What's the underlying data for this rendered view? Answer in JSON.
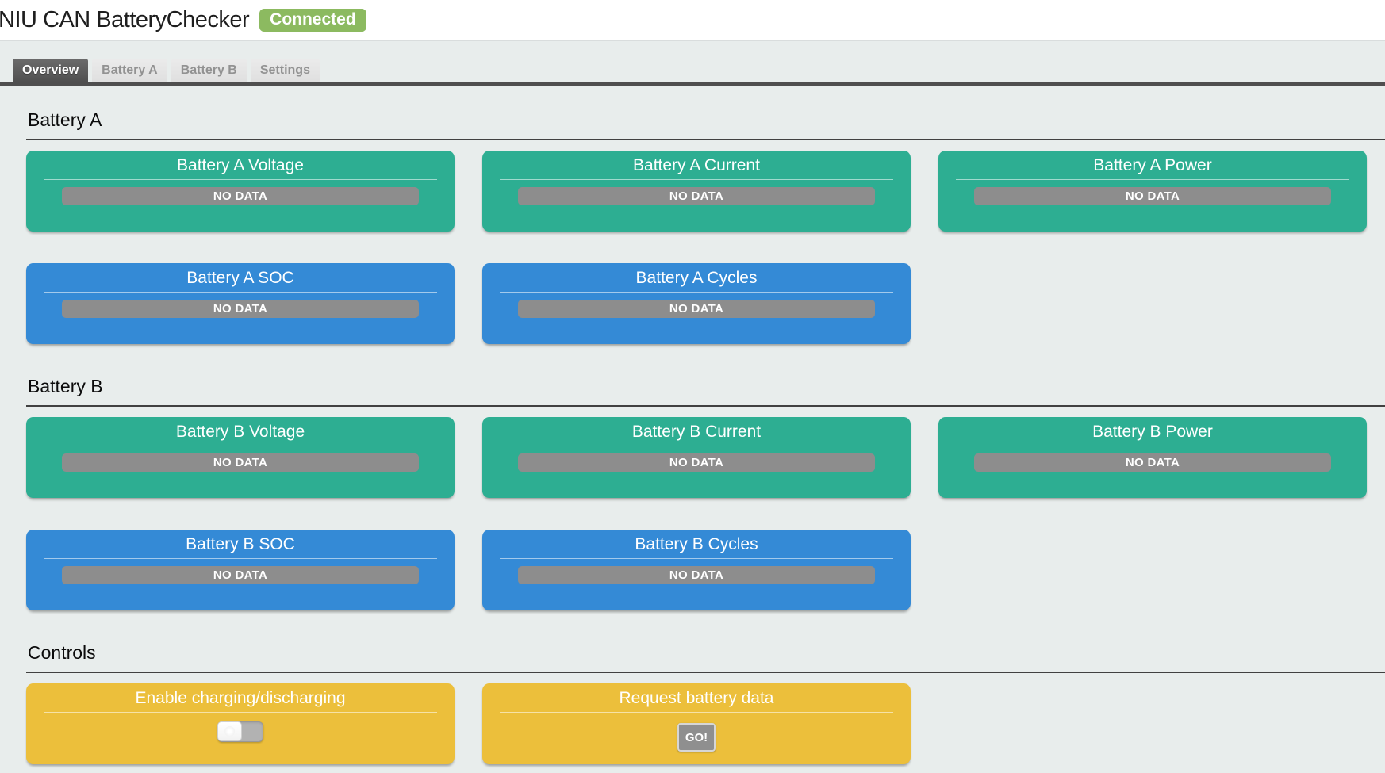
{
  "header": {
    "title": "NIU CAN BatteryChecker",
    "status_badge": "Connected"
  },
  "tabs": {
    "active": "Overview",
    "items": [
      {
        "label": "Overview"
      },
      {
        "label": "Battery A"
      },
      {
        "label": "Battery B"
      },
      {
        "label": "Settings"
      }
    ]
  },
  "battery_a": {
    "heading": "Battery A",
    "cards": [
      {
        "title": "Battery A Voltage",
        "value": "NO DATA",
        "color": "green"
      },
      {
        "title": "Battery A Current",
        "value": "NO DATA",
        "color": "green"
      },
      {
        "title": "Battery A Power",
        "value": "NO DATA",
        "color": "green"
      },
      {
        "title": "Battery A SOC",
        "value": "NO DATA",
        "color": "blue"
      },
      {
        "title": "Battery A Cycles",
        "value": "NO DATA",
        "color": "blue"
      }
    ]
  },
  "battery_b": {
    "heading": "Battery B",
    "cards": [
      {
        "title": "Battery B Voltage",
        "value": "NO DATA",
        "color": "green"
      },
      {
        "title": "Battery B Current",
        "value": "NO DATA",
        "color": "green"
      },
      {
        "title": "Battery B Power",
        "value": "NO DATA",
        "color": "green"
      },
      {
        "title": "Battery B SOC",
        "value": "NO DATA",
        "color": "blue"
      },
      {
        "title": "Battery B Cycles",
        "value": "NO DATA",
        "color": "blue"
      }
    ]
  },
  "controls": {
    "heading": "Controls",
    "cards": [
      {
        "title": "Enable charging/discharging",
        "control": "toggle",
        "state": "off"
      },
      {
        "title": "Request battery data",
        "control": "button",
        "button_label": "GO!"
      }
    ]
  },
  "colors": {
    "page_background": "#e8edec",
    "card_green": "#2dae92",
    "card_blue": "#348ad6",
    "card_yellow": "#ecbf3b",
    "status_badge_green": "#8cba60",
    "no_data_gray": "#8d8d8d",
    "active_tab_gray": "#575757"
  }
}
